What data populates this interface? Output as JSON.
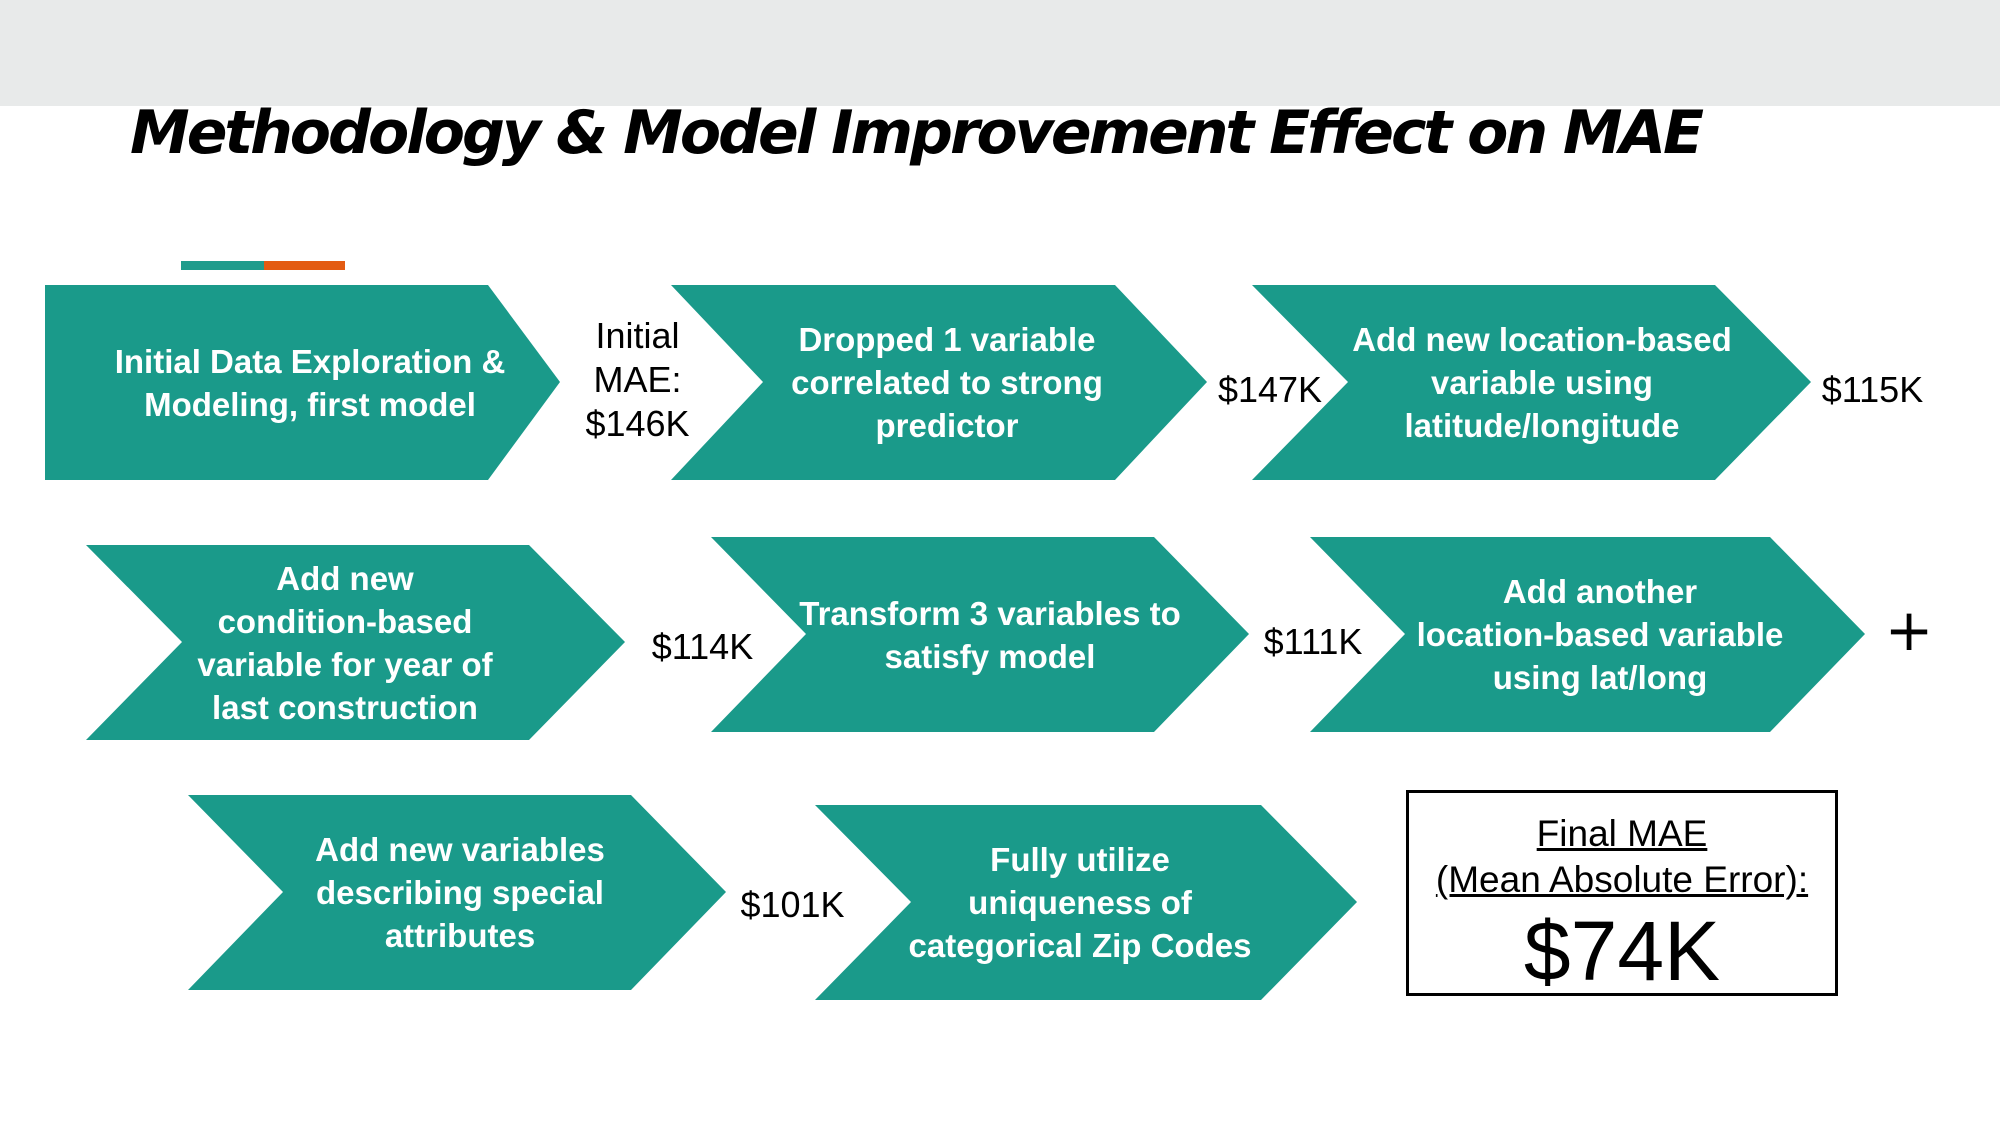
{
  "title": "Methodology & Model Improvement Effect on MAE",
  "colors": {
    "chevron": "#1a9a8a",
    "accent_teal": "#1f9c8c",
    "accent_orange": "#e35b12",
    "top_bar": "#e8eaea"
  },
  "steps": [
    {
      "label": "Initial  Data Exploration &\nModeling, first model"
    },
    {
      "label": "Dropped 1 variable\ncorrelated to strong\npredictor"
    },
    {
      "label": "Add new location-based\nvariable using\nlatitude/longitude"
    },
    {
      "label": "Add new\ncondition-based\nvariable for year of\nlast construction"
    },
    {
      "label": "Transform 3 variables to\nsatisfy model"
    },
    {
      "label": "Add another\nlocation-based variable\nusing  lat/long"
    },
    {
      "label": "Add new variables\ndescribing special\nattributes"
    },
    {
      "label": "Fully utilize\nuniqueness of\ncategorical Zip Codes"
    }
  ],
  "mae_values": [
    "Initial\nMAE:\n$146K",
    "$147K",
    "$115K",
    "$114K",
    "$111K",
    "$101K"
  ],
  "plus_sign": "+",
  "final": {
    "label_line1": "Final MAE",
    "label_line2": "(Mean Absolute Error):",
    "value": "$74K"
  }
}
